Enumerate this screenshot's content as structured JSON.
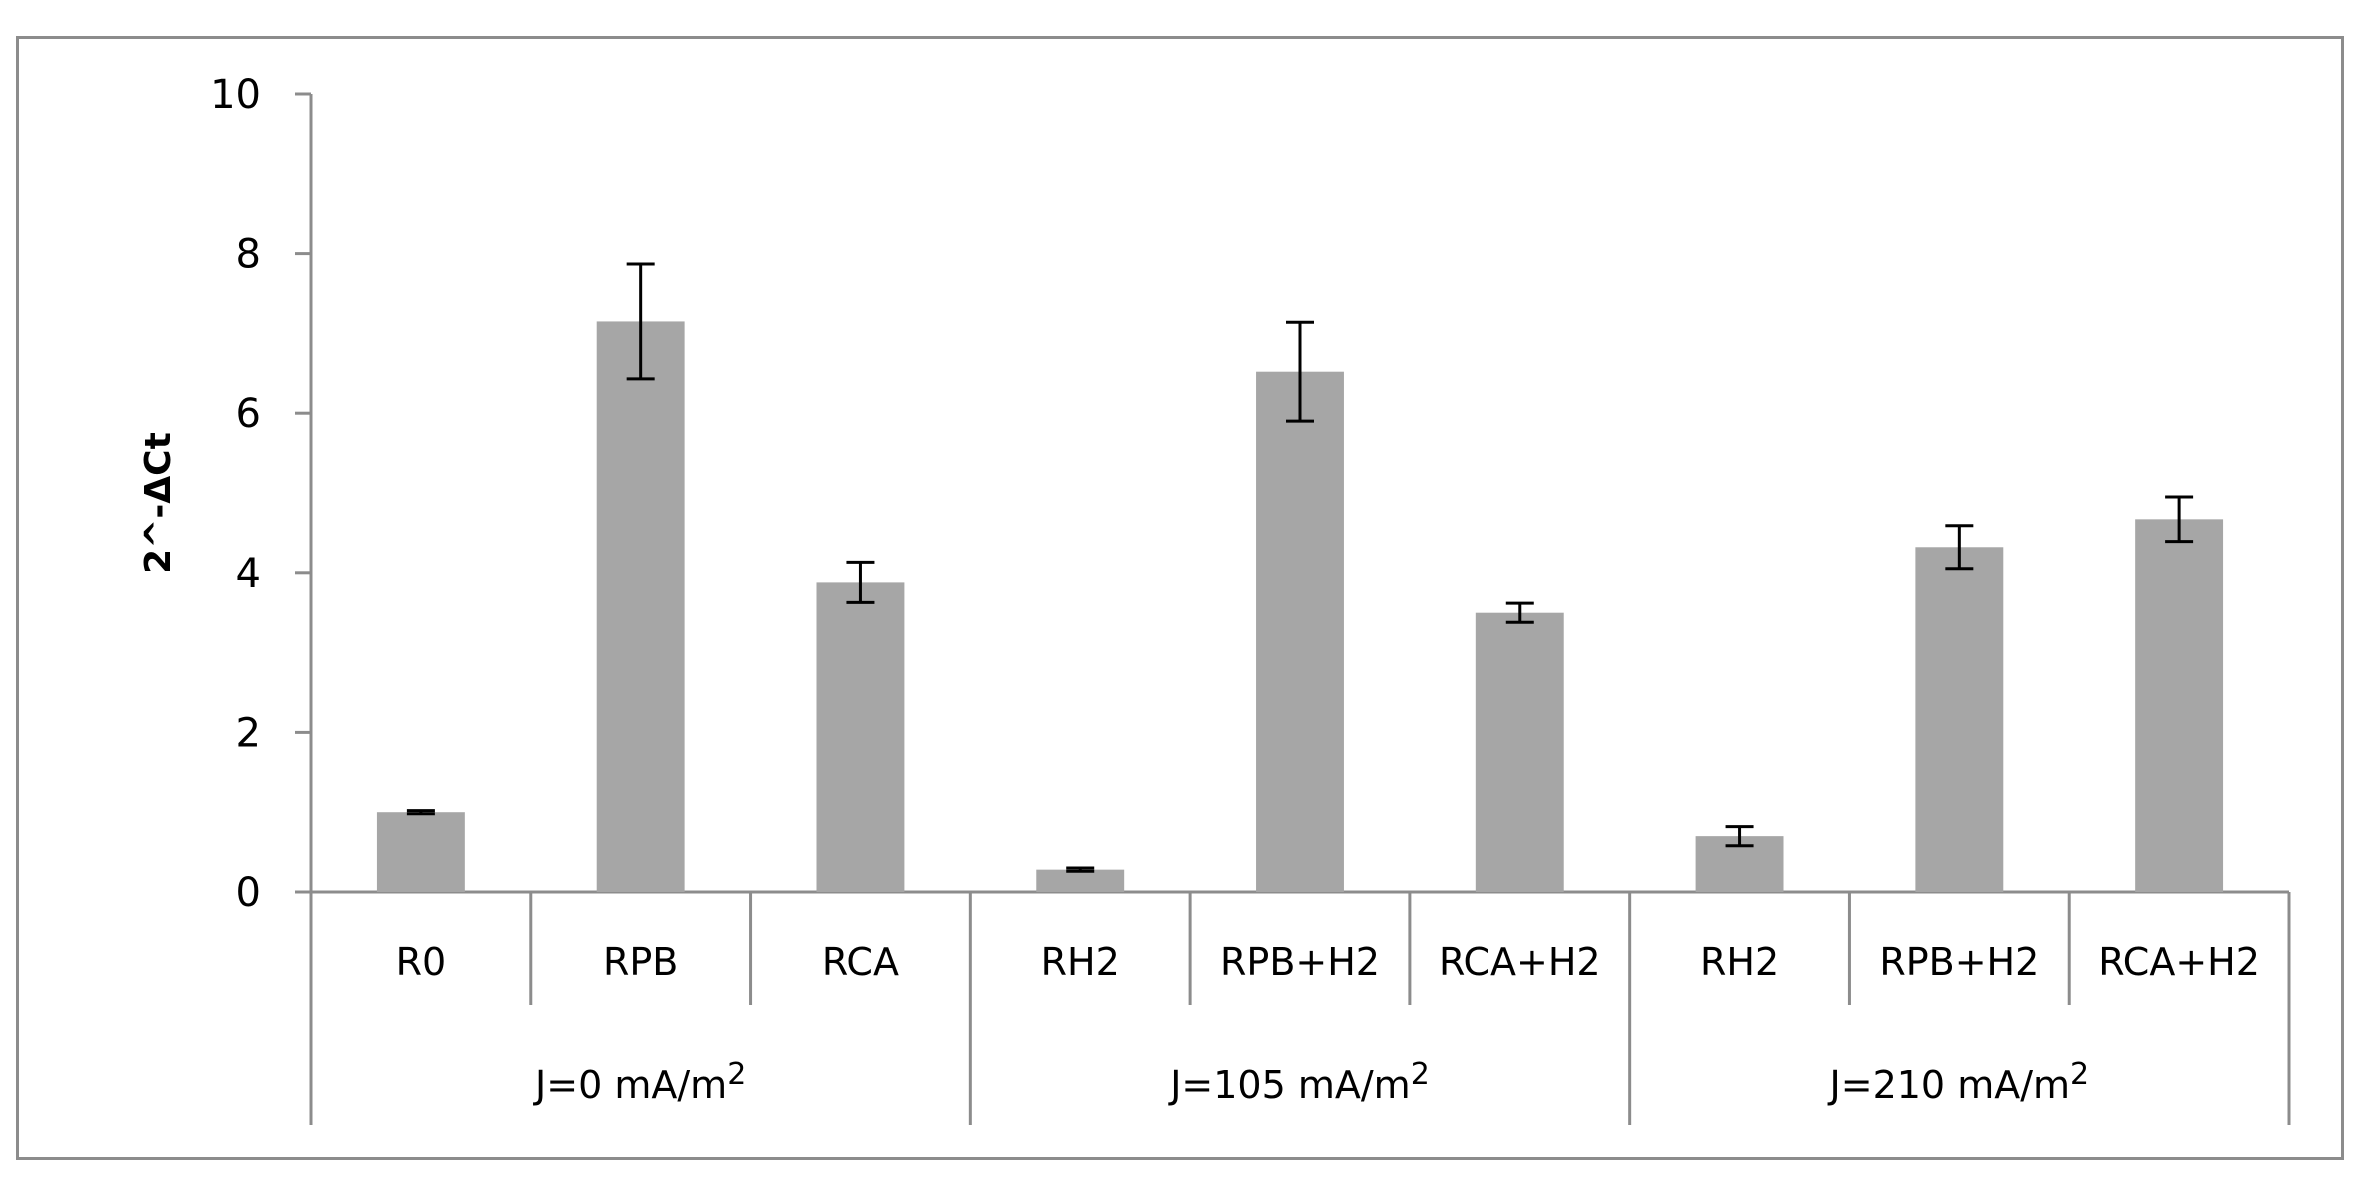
{
  "chart_data": {
    "type": "bar",
    "title": "",
    "xlabel": "",
    "ylabel": "2^-ΔCt",
    "ylim": [
      0,
      10
    ],
    "yticks": [
      0,
      2,
      4,
      6,
      8,
      10
    ],
    "grid": false,
    "legend": "none",
    "bar_color": "#a6a6a6",
    "categories": [
      "R0",
      "RPB",
      "RCA",
      "RH2",
      "RPB+H2",
      "RCA+H2",
      "RH2",
      "RPB+H2",
      "RCA+H2"
    ],
    "values": [
      1.0,
      7.15,
      3.88,
      0.28,
      6.52,
      3.5,
      0.7,
      4.32,
      4.67
    ],
    "errors": [
      0.02,
      0.72,
      0.25,
      0.02,
      0.62,
      0.12,
      0.12,
      0.27,
      0.28
    ],
    "groups": [
      {
        "label": "J=0 mA/m",
        "sup": "2",
        "count": 3
      },
      {
        "label": "J=105 mA/m",
        "sup": "2",
        "count": 3
      },
      {
        "label": "J=210 mA/m",
        "sup": "2",
        "count": 3
      }
    ]
  }
}
